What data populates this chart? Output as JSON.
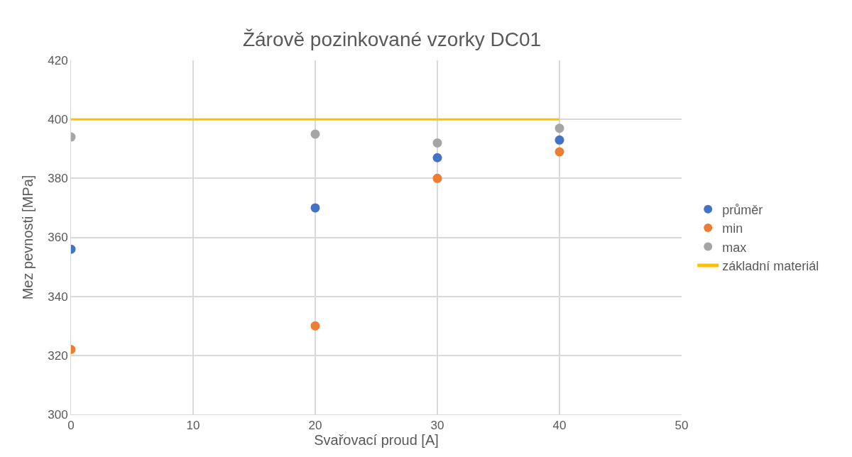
{
  "chart_data": {
    "type": "scatter",
    "title": "Žárově pozinkované vzorky DC01",
    "xlabel": "Svařovací proud [A]",
    "ylabel": "Mez pevnosti [MPa]",
    "x": [
      0,
      20,
      30,
      40
    ],
    "series": [
      {
        "name": "průměr",
        "color": "#4472c4",
        "values": [
          356,
          370,
          387,
          393
        ]
      },
      {
        "name": "min",
        "color": "#ed7d31",
        "values": [
          322,
          330,
          380,
          389
        ]
      },
      {
        "name": "max",
        "color": "#a5a5a5",
        "values": [
          394,
          395,
          392,
          397
        ]
      },
      {
        "name": "základní materiál",
        "color": "#ffc000",
        "type": "line",
        "marker": "none",
        "x": [
          0,
          40
        ],
        "values": [
          400,
          400
        ]
      }
    ],
    "xlim": [
      0,
      50
    ],
    "xticks": [
      0,
      10,
      20,
      30,
      40,
      50
    ],
    "ylim": [
      300,
      420
    ],
    "yticks": [
      300,
      320,
      340,
      360,
      380,
      400,
      420
    ],
    "grid": true,
    "legend": "right",
    "marker": "circle"
  }
}
